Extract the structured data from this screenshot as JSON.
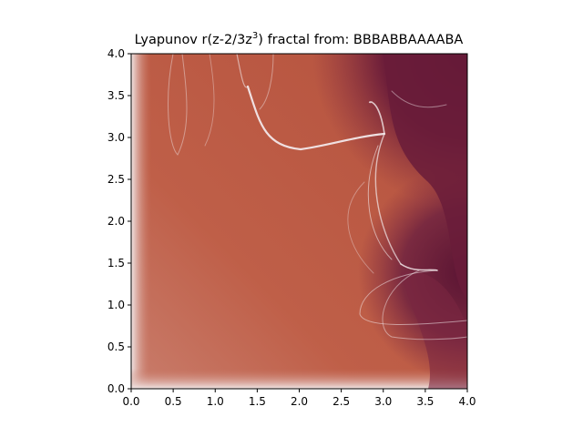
{
  "chart_data": {
    "type": "heatmap",
    "title": {
      "prefix": "Lyapunov r(z-2/3z",
      "superscript": "3",
      "suffix": ") fractal from: BBBABBAAAABA"
    },
    "sequence": "BBBABBAAAABA",
    "xlabel": "",
    "ylabel": "",
    "xlim": [
      0.0,
      4.0
    ],
    "ylim": [
      0.0,
      4.0
    ],
    "x_ticks": [
      "0.0",
      "0.5",
      "1.0",
      "1.5",
      "2.0",
      "2.5",
      "3.0",
      "3.5",
      "4.0"
    ],
    "y_ticks": [
      "0.0",
      "0.5",
      "1.0",
      "1.5",
      "2.0",
      "2.5",
      "3.0",
      "3.5",
      "4.0"
    ],
    "grid": false,
    "colormap": "twilight_shifted",
    "colors": {
      "stable_low": "#2c1a5a",
      "neutral": "#e6e6ea",
      "mid": "#c86a52",
      "high": "#b7553f",
      "chaotic": "#5b1535"
    }
  }
}
